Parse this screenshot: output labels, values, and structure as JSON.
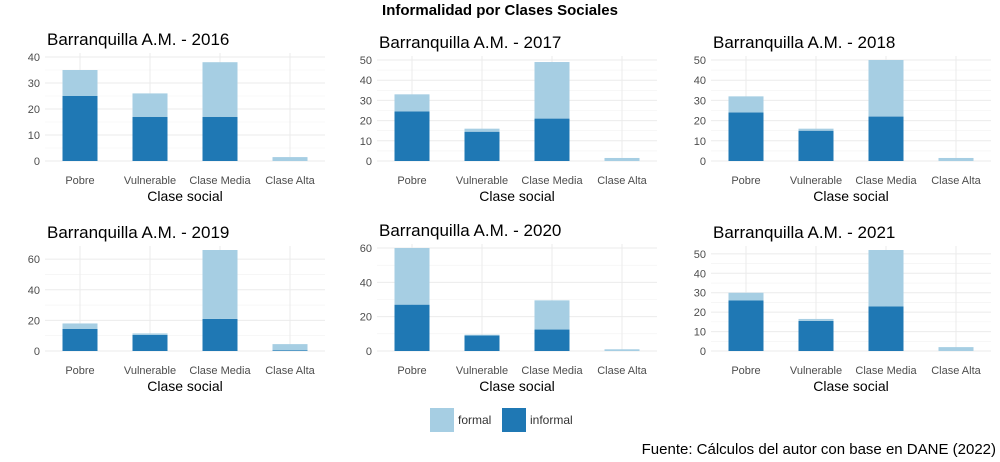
{
  "figure": {
    "title": "Informalidad por Clases Sociales",
    "caption": "Fuente: Cálculos del autor con base en DANE (2022)"
  },
  "colors": {
    "formal": "#a6cee3",
    "informal": "#1f78b4",
    "grid": "#ebebeb"
  },
  "legend": [
    {
      "key": "formal",
      "label": "formal"
    },
    {
      "key": "informal",
      "label": "informal"
    }
  ],
  "chart_data": [
    {
      "type": "bar",
      "stacked": true,
      "title": "Barranquilla A.M. - 2016",
      "xlabel": "Clase social",
      "ylabel": "",
      "categories": [
        "Pobre",
        "Vulnerable",
        "Clase Media",
        "Clase Alta"
      ],
      "ylim": [
        0,
        40
      ],
      "yticks": [
        0,
        10,
        20,
        30,
        40
      ],
      "series": [
        {
          "name": "informal",
          "values": [
            25,
            17,
            17,
            0
          ]
        },
        {
          "name": "formal",
          "values": [
            10,
            9,
            21,
            1.5
          ]
        }
      ]
    },
    {
      "type": "bar",
      "stacked": true,
      "title": "Barranquilla A.M. - 2017",
      "xlabel": "Clase social",
      "ylabel": "",
      "categories": [
        "Pobre",
        "Vulnerable",
        "Clase Media",
        "Clase Alta"
      ],
      "ylim": [
        0,
        50
      ],
      "yticks": [
        0,
        10,
        20,
        30,
        40,
        50
      ],
      "series": [
        {
          "name": "informal",
          "values": [
            24.5,
            14.5,
            21,
            0
          ]
        },
        {
          "name": "formal",
          "values": [
            8.5,
            1.5,
            28,
            1.5
          ]
        }
      ]
    },
    {
      "type": "bar",
      "stacked": true,
      "title": "Barranquilla A.M. - 2018",
      "xlabel": "Clase social",
      "ylabel": "",
      "categories": [
        "Pobre",
        "Vulnerable",
        "Clase Media",
        "Clase Alta"
      ],
      "ylim": [
        0,
        50
      ],
      "yticks": [
        0,
        10,
        20,
        30,
        40,
        50
      ],
      "series": [
        {
          "name": "informal",
          "values": [
            24,
            15,
            22,
            0
          ]
        },
        {
          "name": "formal",
          "values": [
            8,
            1,
            28,
            1.5
          ]
        }
      ]
    },
    {
      "type": "bar",
      "stacked": true,
      "title": "Barranquilla A.M. - 2019",
      "xlabel": "Clase social",
      "ylabel": "",
      "categories": [
        "Pobre",
        "Vulnerable",
        "Clase Media",
        "Clase Alta"
      ],
      "ylim": [
        0,
        66
      ],
      "yticks": [
        0,
        20,
        40,
        60
      ],
      "series": [
        {
          "name": "informal",
          "values": [
            14.5,
            10.5,
            21,
            0.5
          ]
        },
        {
          "name": "formal",
          "values": [
            3.5,
            1,
            45,
            4
          ]
        }
      ]
    },
    {
      "type": "bar",
      "stacked": true,
      "title": "Barranquilla A.M. - 2020",
      "xlabel": "Clase social",
      "ylabel": "",
      "categories": [
        "Pobre",
        "Vulnerable",
        "Clase Media",
        "Clase Alta"
      ],
      "ylim": [
        0,
        60
      ],
      "yticks": [
        0,
        20,
        40,
        60
      ],
      "series": [
        {
          "name": "informal",
          "values": [
            27,
            9,
            12.5,
            0
          ]
        },
        {
          "name": "formal",
          "values": [
            33,
            0.5,
            17,
            1
          ]
        }
      ]
    },
    {
      "type": "bar",
      "stacked": true,
      "title": "Barranquilla A.M. - 2021",
      "xlabel": "Clase social",
      "ylabel": "",
      "categories": [
        "Pobre",
        "Vulnerable",
        "Clase Media",
        "Clase Alta"
      ],
      "ylim": [
        0,
        52
      ],
      "yticks": [
        0,
        10,
        20,
        30,
        40,
        50
      ],
      "series": [
        {
          "name": "informal",
          "values": [
            26,
            15.5,
            23,
            0
          ]
        },
        {
          "name": "formal",
          "values": [
            4,
            1,
            29,
            2
          ]
        }
      ]
    }
  ]
}
